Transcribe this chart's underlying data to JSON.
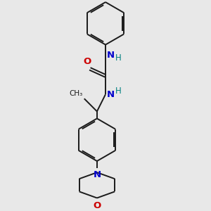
{
  "bg_color": "#e8e8e8",
  "bond_color": "#1a1a1a",
  "N_color": "#0000cc",
  "O_color": "#cc0000",
  "H_color": "#008080",
  "lw": 1.4,
  "dbo": 0.018,
  "xlim": [
    0.2,
    2.8
  ],
  "ylim": [
    0.05,
    2.95
  ]
}
